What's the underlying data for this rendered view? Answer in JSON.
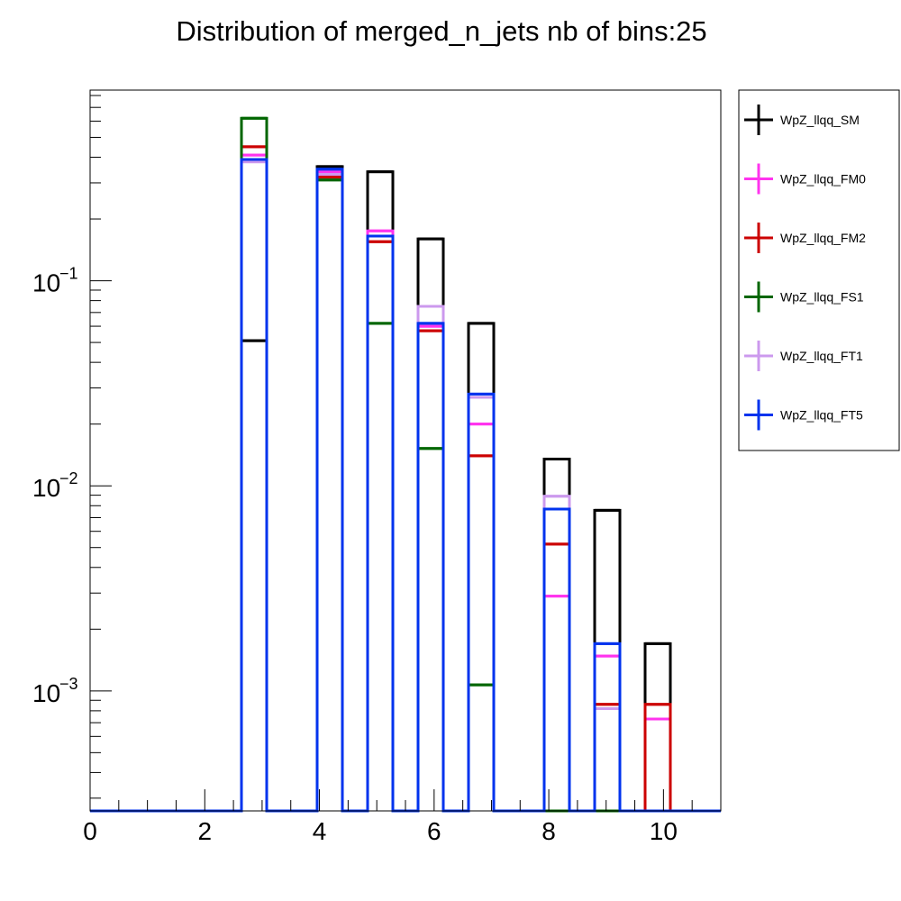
{
  "chart_data": {
    "type": "bar",
    "title": "Distribution of merged_n_jets nb of bins:25",
    "xlabel": "",
    "ylabel": "",
    "xlim": [
      0,
      11
    ],
    "ylim": [
      0.00026,
      0.85
    ],
    "yscale": "log",
    "grid": false,
    "legend_position": "right-outside-top",
    "x_ticks": [
      {
        "value": 0,
        "label": "0"
      },
      {
        "value": 2,
        "label": "2"
      },
      {
        "value": 4,
        "label": "4"
      },
      {
        "value": 6,
        "label": "6"
      },
      {
        "value": 8,
        "label": "8"
      },
      {
        "value": 10,
        "label": "10"
      }
    ],
    "y_ticks": [
      {
        "value": 0.1,
        "base": "10",
        "exp": "−1"
      },
      {
        "value": 0.01,
        "base": "10",
        "exp": "−2"
      },
      {
        "value": 0.001,
        "base": "10",
        "exp": "−3"
      }
    ],
    "bins": [
      {
        "low": 2.64,
        "high": 3.08
      },
      {
        "low": 3.96,
        "high": 4.4
      },
      {
        "low": 4.84,
        "high": 5.28
      },
      {
        "low": 5.72,
        "high": 6.16
      },
      {
        "low": 6.6,
        "high": 7.04
      },
      {
        "low": 7.92,
        "high": 8.36
      },
      {
        "low": 8.8,
        "high": 9.24
      },
      {
        "low": 9.68,
        "high": 10.12
      }
    ],
    "series": [
      {
        "name": "WpZ_llqq_SM",
        "color": "#000000",
        "values": [
          0.051,
          0.36,
          0.34,
          0.16,
          0.062,
          0.0135,
          0.0076,
          0.0017
        ]
      },
      {
        "name": "WpZ_llqq_FM0",
        "color": "#ff33ee",
        "values": [
          0.41,
          0.34,
          0.175,
          0.06,
          0.02,
          0.0029,
          0.00148,
          0.00073
        ]
      },
      {
        "name": "WpZ_llqq_FM2",
        "color": "#cc0000",
        "values": [
          0.45,
          0.32,
          0.155,
          0.057,
          0.014,
          0.0052,
          0.00086,
          0.00086
        ]
      },
      {
        "name": "WpZ_llqq_FS1",
        "color": "#006600",
        "values": [
          0.62,
          0.31,
          0.062,
          0.0152,
          0.00107,
          null,
          null,
          null
        ]
      },
      {
        "name": "WpZ_llqq_FT1",
        "color": "#cc99ee",
        "values": [
          0.38,
          0.33,
          0.165,
          0.075,
          0.027,
          0.0089,
          0.00082,
          null
        ]
      },
      {
        "name": "WpZ_llqq_FT5",
        "color": "#0033ee",
        "values": [
          0.39,
          0.35,
          0.165,
          0.062,
          0.028,
          0.0077,
          0.0017,
          null
        ]
      }
    ]
  }
}
